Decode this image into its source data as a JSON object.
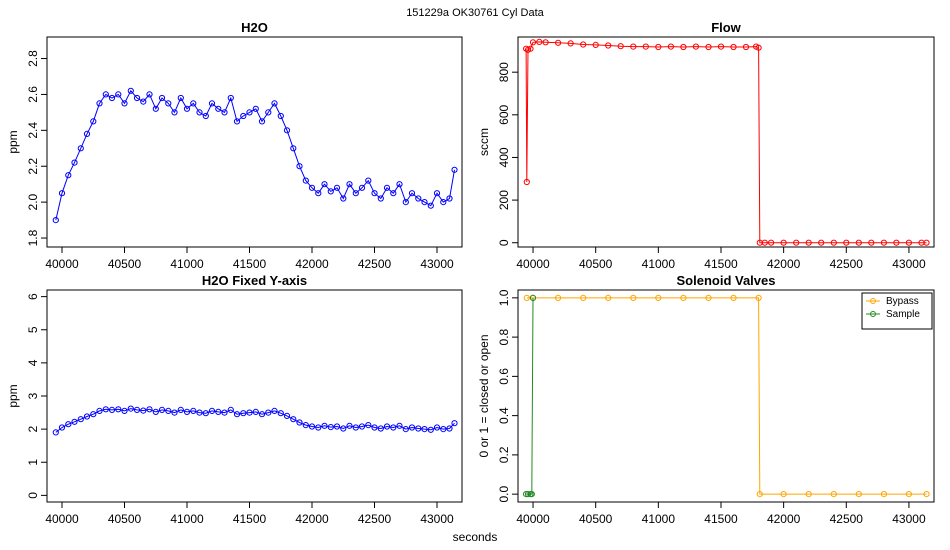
{
  "suptitle": "151229a    OK30761    Cyl Data",
  "shared_xlabel": "seconds",
  "colors": {
    "h2o": "#0000ff",
    "flow": "#ff0000",
    "bypass": "#ffa500",
    "sample": "#228b22"
  },
  "chart_data": [
    {
      "id": "h2o",
      "type": "line",
      "title": "H2O",
      "xlabel": "",
      "ylabel": "ppm",
      "xlim": [
        39880,
        43200
      ],
      "ylim": [
        1.75,
        2.92
      ],
      "xticks": [
        "40000",
        "40500",
        "41000",
        "41500",
        "42000",
        "42500",
        "43000"
      ],
      "yticks": [
        "1.8",
        "2.0",
        "2.2",
        "2.4",
        "2.6",
        "2.8"
      ],
      "series": [
        {
          "color": "#0000ff",
          "style": "line+open-circles",
          "x": [
            39950,
            40000,
            40050,
            40100,
            40150,
            40200,
            40250,
            40300,
            40350,
            40400,
            40450,
            40500,
            40550,
            40600,
            40650,
            40700,
            40750,
            40800,
            40850,
            40900,
            40950,
            41000,
            41050,
            41100,
            41150,
            41200,
            41250,
            41300,
            41350,
            41400,
            41450,
            41500,
            41550,
            41600,
            41650,
            41700,
            41750,
            41800,
            41850,
            41900,
            41950,
            42000,
            42050,
            42100,
            42150,
            42200,
            42250,
            42300,
            42350,
            42400,
            42450,
            42500,
            42550,
            42600,
            42650,
            42700,
            42750,
            42800,
            42850,
            42900,
            42950,
            43000,
            43050,
            43100,
            43140
          ],
          "y": [
            1.9,
            2.05,
            2.15,
            2.22,
            2.3,
            2.38,
            2.45,
            2.55,
            2.6,
            2.58,
            2.6,
            2.55,
            2.62,
            2.58,
            2.56,
            2.6,
            2.52,
            2.58,
            2.55,
            2.5,
            2.58,
            2.52,
            2.55,
            2.5,
            2.48,
            2.55,
            2.52,
            2.5,
            2.58,
            2.45,
            2.48,
            2.5,
            2.52,
            2.45,
            2.5,
            2.55,
            2.48,
            2.4,
            2.3,
            2.2,
            2.12,
            2.08,
            2.05,
            2.1,
            2.06,
            2.08,
            2.02,
            2.1,
            2.05,
            2.08,
            2.12,
            2.05,
            2.02,
            2.08,
            2.05,
            2.1,
            2.0,
            2.05,
            2.02,
            2.0,
            1.98,
            2.05,
            2.0,
            2.02,
            2.18
          ]
        }
      ]
    },
    {
      "id": "flow",
      "type": "line",
      "title": "Flow",
      "xlabel": "",
      "ylabel": "sccm",
      "xlim": [
        39880,
        43200
      ],
      "ylim": [
        -20,
        965
      ],
      "xticks": [
        "40000",
        "40500",
        "41000",
        "41500",
        "42000",
        "42500",
        "43000"
      ],
      "yticks": [
        "0",
        "200",
        "400",
        "600",
        "800"
      ],
      "series": [
        {
          "color": "#ff0000",
          "style": "line+open-circles",
          "x": [
            39945,
            39950,
            39960,
            39980,
            40000,
            40050,
            40100,
            40200,
            40300,
            40400,
            40500,
            40600,
            40700,
            40800,
            40900,
            41000,
            41100,
            41200,
            41300,
            41400,
            41500,
            41600,
            41700,
            41780,
            41800,
            41810,
            41850,
            41900,
            42000,
            42100,
            42200,
            42300,
            42400,
            42500,
            42600,
            42700,
            42800,
            42900,
            43000,
            43100,
            43140
          ],
          "y": [
            910,
            285,
            905,
            910,
            940,
            942,
            940,
            938,
            935,
            930,
            928,
            925,
            922,
            920,
            920,
            918,
            920,
            918,
            920,
            918,
            920,
            918,
            918,
            920,
            915,
            0,
            0,
            0,
            0,
            0,
            0,
            0,
            0,
            0,
            0,
            0,
            0,
            0,
            0,
            0,
            0
          ]
        }
      ]
    },
    {
      "id": "h2o-fixed",
      "type": "line",
      "title": "H2O Fixed Y-axis",
      "xlabel": "",
      "ylabel": "ppm",
      "xlim": [
        39880,
        43200
      ],
      "ylim": [
        -0.2,
        6.2
      ],
      "xticks": [
        "40000",
        "40500",
        "41000",
        "41500",
        "42000",
        "42500",
        "43000"
      ],
      "yticks": [
        "0",
        "1",
        "2",
        "3",
        "4",
        "5",
        "6"
      ],
      "series": [
        {
          "color": "#0000ff",
          "style": "line+open-circles",
          "x": [
            39950,
            40000,
            40050,
            40100,
            40150,
            40200,
            40250,
            40300,
            40350,
            40400,
            40450,
            40500,
            40550,
            40600,
            40650,
            40700,
            40750,
            40800,
            40850,
            40900,
            40950,
            41000,
            41050,
            41100,
            41150,
            41200,
            41250,
            41300,
            41350,
            41400,
            41450,
            41500,
            41550,
            41600,
            41650,
            41700,
            41750,
            41800,
            41850,
            41900,
            41950,
            42000,
            42050,
            42100,
            42150,
            42200,
            42250,
            42300,
            42350,
            42400,
            42450,
            42500,
            42550,
            42600,
            42650,
            42700,
            42750,
            42800,
            42850,
            42900,
            42950,
            43000,
            43050,
            43100,
            43140
          ],
          "y": [
            1.9,
            2.05,
            2.15,
            2.22,
            2.3,
            2.38,
            2.45,
            2.55,
            2.6,
            2.58,
            2.6,
            2.55,
            2.62,
            2.58,
            2.56,
            2.6,
            2.52,
            2.58,
            2.55,
            2.5,
            2.58,
            2.52,
            2.55,
            2.5,
            2.48,
            2.55,
            2.52,
            2.5,
            2.58,
            2.45,
            2.48,
            2.5,
            2.52,
            2.45,
            2.5,
            2.55,
            2.48,
            2.4,
            2.3,
            2.2,
            2.12,
            2.08,
            2.05,
            2.1,
            2.06,
            2.08,
            2.02,
            2.1,
            2.05,
            2.08,
            2.12,
            2.05,
            2.02,
            2.08,
            2.05,
            2.1,
            2.0,
            2.05,
            2.02,
            2.0,
            1.98,
            2.05,
            2.0,
            2.02,
            2.18
          ]
        }
      ]
    },
    {
      "id": "solenoid",
      "type": "line",
      "title": "Solenoid Valves",
      "xlabel": "",
      "ylabel": "0 or 1 = closed or open",
      "xlim": [
        39880,
        43200
      ],
      "ylim": [
        -0.04,
        1.04
      ],
      "xticks": [
        "40000",
        "40500",
        "41000",
        "41500",
        "42000",
        "42500",
        "43000"
      ],
      "yticks": [
        "0.0",
        "0.2",
        "0.4",
        "0.6",
        "0.8",
        "1.0"
      ],
      "legend_position": "top-right",
      "series": [
        {
          "name": "Bypass",
          "color": "#ffa500",
          "style": "line+open-circles",
          "x": [
            39950,
            40000,
            40200,
            40400,
            40600,
            40800,
            41000,
            41200,
            41400,
            41600,
            41800,
            41810,
            42000,
            42200,
            42400,
            42600,
            42800,
            43000,
            43140
          ],
          "y": [
            1,
            1,
            1,
            1,
            1,
            1,
            1,
            1,
            1,
            1,
            1,
            0,
            0,
            0,
            0,
            0,
            0,
            0,
            0
          ]
        },
        {
          "name": "Sample",
          "color": "#228b22",
          "style": "line+open-circles",
          "x": [
            39945,
            39960,
            39980,
            39990,
            40000
          ],
          "y": [
            0,
            0,
            0,
            0,
            1
          ]
        }
      ]
    }
  ]
}
